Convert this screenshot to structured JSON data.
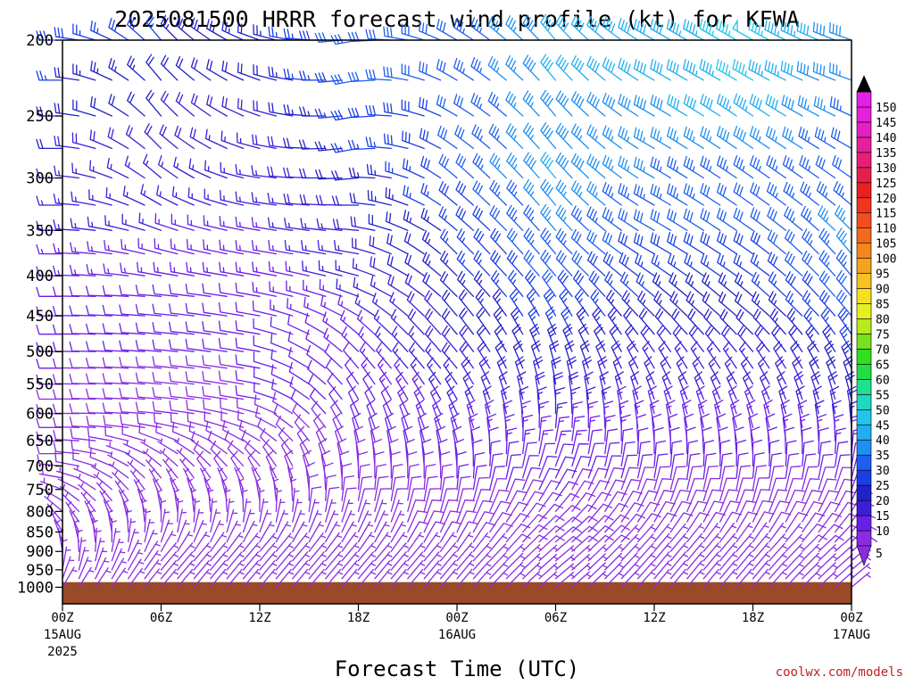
{
  "chart_data": {
    "type": "wind-barb profile (time-height)",
    "title": "2025081500 HRRR forecast wind profile (kt) for KFWA",
    "xlabel": "Forecast Time (UTC)",
    "ylabel": "",
    "credit": "coolwx.com/models",
    "y_scale": "log-pressure, inverted",
    "ylim_hpa": [
      1050,
      200
    ],
    "y_ticks": [
      200,
      250,
      300,
      350,
      400,
      450,
      500,
      550,
      600,
      650,
      700,
      750,
      800,
      850,
      900,
      950,
      1000
    ],
    "x_range_hours": [
      0,
      48
    ],
    "x_ticks": [
      {
        "hour": 0,
        "label": "00Z",
        "sub1": "15AUG",
        "sub2": "2025"
      },
      {
        "hour": 6,
        "label": "06Z",
        "sub1": "",
        "sub2": ""
      },
      {
        "hour": 12,
        "label": "12Z",
        "sub1": "",
        "sub2": ""
      },
      {
        "hour": 18,
        "label": "18Z",
        "sub1": "",
        "sub2": ""
      },
      {
        "hour": 24,
        "label": "00Z",
        "sub1": "16AUG",
        "sub2": ""
      },
      {
        "hour": 30,
        "label": "06Z",
        "sub1": "",
        "sub2": ""
      },
      {
        "hour": 36,
        "label": "12Z",
        "sub1": "",
        "sub2": ""
      },
      {
        "hour": 42,
        "label": "18Z",
        "sub1": "",
        "sub2": ""
      },
      {
        "hour": 48,
        "label": "00Z",
        "sub1": "17AUG",
        "sub2": ""
      }
    ],
    "ground_level_hpa": 985,
    "ground_color": "#9a4a28",
    "barb_levels_hpa": [
      200,
      225,
      250,
      275,
      300,
      325,
      350,
      375,
      400,
      425,
      450,
      475,
      500,
      525,
      550,
      575,
      600,
      625,
      650,
      675,
      700,
      725,
      750,
      775,
      800,
      825,
      850,
      875,
      900,
      925,
      950,
      975,
      1000
    ],
    "barb_times_hours": [
      0,
      1,
      2,
      3,
      4,
      5,
      6,
      7,
      8,
      9,
      10,
      11,
      12,
      13,
      14,
      15,
      16,
      17,
      18,
      19,
      20,
      21,
      22,
      23,
      24,
      25,
      26,
      27,
      28,
      29,
      30,
      31,
      32,
      33,
      34,
      35,
      36,
      37,
      38,
      39,
      40,
      41,
      42,
      43,
      44,
      45,
      46,
      47,
      48
    ],
    "wind_profiles_kt": [
      {
        "hour": 0,
        "speed": [
          28,
          25,
          22,
          20,
          17,
          17,
          15,
          14,
          13,
          12,
          11,
          11,
          10,
          10,
          10,
          9,
          9,
          9,
          8,
          8,
          8,
          7,
          7,
          7,
          6,
          6,
          6,
          5,
          5,
          5,
          5,
          5,
          5
        ],
        "dir": [
          270,
          270,
          270,
          270,
          270,
          270,
          270,
          270,
          270,
          270,
          270,
          270,
          270,
          270,
          270,
          270,
          270,
          270,
          270,
          270,
          275,
          280,
          290,
          300,
          310,
          320,
          330,
          340,
          350,
          360,
          10,
          20,
          30
        ]
      },
      {
        "hour": 6,
        "speed": [
          25,
          22,
          20,
          18,
          17,
          16,
          15,
          14,
          13,
          12,
          11,
          10,
          10,
          9,
          9,
          9,
          8,
          8,
          8,
          7,
          7,
          7,
          6,
          6,
          6,
          5,
          5,
          5,
          5,
          5,
          5,
          5,
          5
        ],
        "dir": [
          320,
          320,
          320,
          315,
          310,
          300,
          290,
          285,
          280,
          275,
          275,
          275,
          275,
          275,
          275,
          275,
          275,
          280,
          290,
          300,
          310,
          320,
          330,
          340,
          350,
          360,
          10,
          20,
          30,
          40,
          40,
          40,
          40
        ]
      },
      {
        "hour": 12,
        "speed": [
          22,
          20,
          18,
          17,
          16,
          15,
          14,
          13,
          13,
          12,
          12,
          11,
          11,
          10,
          10,
          10,
          9,
          9,
          9,
          8,
          8,
          8,
          7,
          7,
          7,
          6,
          6,
          6,
          6,
          6,
          6,
          6,
          6
        ],
        "dir": [
          290,
          290,
          290,
          285,
          280,
          280,
          280,
          280,
          280,
          280,
          280,
          280,
          280,
          280,
          280,
          280,
          285,
          290,
          300,
          310,
          320,
          330,
          340,
          350,
          360,
          10,
          20,
          30,
          40,
          40,
          40,
          40,
          40
        ]
      },
      {
        "hour": 18,
        "speed": [
          32,
          30,
          28,
          25,
          22,
          20,
          18,
          17,
          16,
          15,
          14,
          13,
          13,
          12,
          12,
          11,
          11,
          10,
          10,
          9,
          9,
          9,
          8,
          8,
          8,
          7,
          7,
          7,
          7,
          7,
          7,
          7,
          7
        ],
        "dir": [
          260,
          260,
          260,
          260,
          265,
          270,
          275,
          280,
          285,
          290,
          300,
          310,
          315,
          320,
          325,
          330,
          335,
          340,
          345,
          350,
          355,
          360,
          5,
          10,
          15,
          20,
          25,
          30,
          35,
          40,
          40,
          40,
          40
        ]
      },
      {
        "hour": 24,
        "speed": [
          32,
          32,
          30,
          30,
          30,
          28,
          26,
          25,
          24,
          22,
          20,
          20,
          19,
          18,
          17,
          16,
          15,
          14,
          13,
          12,
          11,
          10,
          10,
          9,
          9,
          8,
          8,
          8,
          7,
          7,
          7,
          7,
          7
        ],
        "dir": [
          300,
          300,
          300,
          305,
          310,
          310,
          310,
          315,
          315,
          315,
          320,
          320,
          320,
          320,
          325,
          330,
          335,
          340,
          345,
          350,
          355,
          360,
          5,
          10,
          15,
          20,
          25,
          30,
          35,
          40,
          40,
          40,
          40
        ]
      },
      {
        "hour": 30,
        "speed": [
          40,
          40,
          38,
          38,
          40,
          38,
          36,
          34,
          32,
          30,
          28,
          26,
          24,
          22,
          20,
          18,
          16,
          15,
          14,
          13,
          12,
          11,
          10,
          10,
          9,
          9,
          8,
          8,
          8,
          7,
          7,
          7,
          7
        ],
        "dir": [
          320,
          320,
          320,
          320,
          320,
          320,
          320,
          320,
          320,
          325,
          330,
          335,
          340,
          345,
          350,
          355,
          360,
          5,
          10,
          15,
          20,
          25,
          30,
          35,
          40,
          45,
          50,
          50,
          50,
          50,
          50,
          50,
          50
        ]
      },
      {
        "hour": 36,
        "speed": [
          40,
          40,
          38,
          36,
          35,
          33,
          31,
          29,
          27,
          25,
          23,
          21,
          19,
          17,
          16,
          15,
          14,
          13,
          12,
          11,
          10,
          10,
          9,
          9,
          8,
          8,
          8,
          7,
          7,
          7,
          7,
          7,
          7
        ],
        "dir": [
          300,
          300,
          300,
          300,
          300,
          300,
          300,
          300,
          305,
          310,
          315,
          320,
          325,
          330,
          335,
          340,
          345,
          350,
          355,
          360,
          5,
          10,
          15,
          20,
          25,
          30,
          35,
          40,
          40,
          40,
          40,
          40,
          40
        ]
      },
      {
        "hour": 42,
        "speed": [
          48,
          46,
          44,
          38,
          34,
          32,
          30,
          28,
          26,
          24,
          22,
          20,
          18,
          17,
          16,
          15,
          14,
          13,
          12,
          11,
          10,
          10,
          9,
          9,
          8,
          8,
          8,
          7,
          7,
          7,
          7,
          7,
          7
        ],
        "dir": [
          300,
          300,
          305,
          305,
          305,
          305,
          305,
          305,
          305,
          310,
          310,
          315,
          320,
          325,
          330,
          335,
          340,
          345,
          350,
          355,
          360,
          5,
          10,
          15,
          20,
          25,
          30,
          35,
          40,
          40,
          40,
          40,
          40
        ]
      },
      {
        "hour": 48,
        "speed": [
          38,
          36,
          34,
          32,
          32,
          34,
          36,
          36,
          34,
          32,
          30,
          28,
          26,
          24,
          22,
          20,
          18,
          16,
          14,
          13,
          12,
          11,
          10,
          10,
          9,
          9,
          8,
          8,
          8,
          7,
          7,
          7,
          7
        ],
        "dir": [
          290,
          290,
          295,
          300,
          305,
          310,
          315,
          320,
          320,
          320,
          320,
          325,
          330,
          335,
          340,
          345,
          350,
          355,
          360,
          5,
          10,
          15,
          20,
          25,
          30,
          35,
          40,
          45,
          50,
          50,
          50,
          50,
          50
        ]
      }
    ],
    "colorbar": {
      "label_values": [
        5,
        10,
        15,
        20,
        25,
        30,
        35,
        40,
        45,
        50,
        55,
        60,
        65,
        70,
        75,
        80,
        85,
        90,
        95,
        100,
        105,
        110,
        115,
        120,
        125,
        130,
        135,
        140,
        145,
        150
      ],
      "colors": [
        "#8a2be2",
        "#6a1fe8",
        "#3b1fd8",
        "#2121c8",
        "#1a3fe6",
        "#1e5ff0",
        "#1f8ff0",
        "#20aef0",
        "#22c6e8",
        "#1fd8c0",
        "#1fe090",
        "#22dd44",
        "#2ee01f",
        "#77e01f",
        "#b8ea1f",
        "#e6f01f",
        "#f5e01f",
        "#f5c21f",
        "#f5a31f",
        "#f5851f",
        "#f0691f",
        "#f04e1f",
        "#f0341f",
        "#ea1f1f",
        "#e61f4a",
        "#e61f74",
        "#e61f9a",
        "#e61fc0",
        "#e61fdc",
        "#e61fe6"
      ],
      "top_arrow_color": "#000000",
      "bottom_arrow_color": "#8a2be2"
    }
  }
}
